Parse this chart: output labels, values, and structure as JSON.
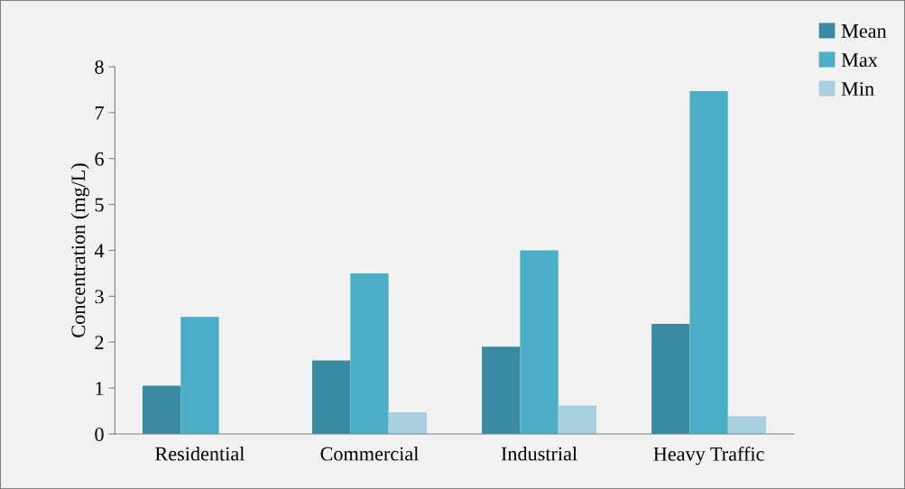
{
  "chart_data": {
    "type": "bar",
    "ylabel": "Concentration (mg/L)",
    "categories": [
      "Residential",
      "Commercial",
      "Industrial",
      "Heavy Traffic"
    ],
    "series": [
      {
        "name": "Mean",
        "color": "#3a8aa3",
        "values": [
          1.05,
          1.6,
          1.9,
          2.4
        ]
      },
      {
        "name": "Max",
        "color": "#4badc6",
        "values": [
          2.55,
          3.5,
          4.0,
          7.47
        ]
      },
      {
        "name": "Min",
        "color": "#a8d0de",
        "values": [
          null,
          0.47,
          0.62,
          0.39
        ]
      }
    ],
    "ylim": [
      0,
      8
    ],
    "yticks": [
      0,
      1,
      2,
      3,
      4,
      5,
      6,
      7,
      8
    ],
    "grid": false,
    "legend": "top right"
  }
}
